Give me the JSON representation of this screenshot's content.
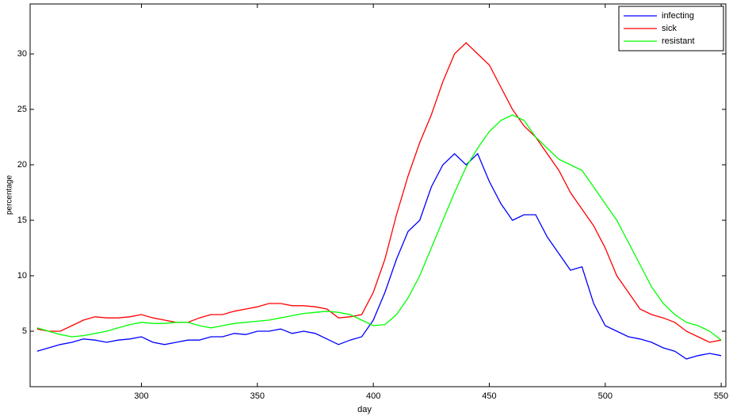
{
  "chart_data": {
    "type": "line",
    "x_label": "day",
    "y_label": "percentage",
    "x": [
      255,
      260,
      265,
      270,
      275,
      280,
      285,
      290,
      295,
      300,
      305,
      310,
      315,
      320,
      325,
      330,
      335,
      340,
      345,
      350,
      355,
      360,
      365,
      370,
      375,
      380,
      385,
      390,
      395,
      400,
      405,
      410,
      415,
      420,
      425,
      430,
      435,
      440,
      445,
      450,
      455,
      460,
      465,
      470,
      475,
      480,
      485,
      490,
      495,
      500,
      505,
      510,
      515,
      520,
      525,
      530,
      535,
      540,
      545,
      550
    ],
    "series": [
      {
        "name": "infecting",
        "color": "#0000ff",
        "values": [
          3.2,
          3.5,
          3.8,
          4.0,
          4.3,
          4.2,
          4.0,
          4.2,
          4.3,
          4.5,
          4.0,
          3.8,
          4.0,
          4.2,
          4.2,
          4.5,
          4.5,
          4.8,
          4.7,
          5.0,
          5.0,
          5.2,
          4.8,
          5.0,
          4.8,
          4.3,
          3.8,
          4.2,
          4.5,
          6.0,
          8.5,
          11.5,
          14,
          15,
          18,
          20,
          21,
          20,
          21,
          18.5,
          16.5,
          15,
          15.5,
          15.5,
          13.5,
          12,
          10.5,
          10.8,
          7.5,
          5.5,
          5,
          4.5,
          4.3,
          4.0,
          3.5,
          3.2,
          2.5,
          2.8,
          3.0,
          2.8
        ]
      },
      {
        "name": "sick",
        "color": "#ff0000",
        "values": [
          5.2,
          5.0,
          5.0,
          5.5,
          6.0,
          6.3,
          6.2,
          6.2,
          6.3,
          6.5,
          6.2,
          6.0,
          5.8,
          5.8,
          6.2,
          6.5,
          6.5,
          6.8,
          7.0,
          7.2,
          7.5,
          7.5,
          7.3,
          7.3,
          7.2,
          7.0,
          6.2,
          6.3,
          6.5,
          8.5,
          11.5,
          15.5,
          19,
          22,
          24.5,
          27.5,
          30,
          31,
          30,
          29,
          27,
          25,
          23.5,
          22.5,
          21,
          19.5,
          17.5,
          16,
          14.5,
          12.5,
          10,
          8.5,
          7,
          6.5,
          6.2,
          5.8,
          5.0,
          4.5,
          4.0,
          4.2
        ]
      },
      {
        "name": "resistant",
        "color": "#00ff00",
        "values": [
          5.3,
          5.0,
          4.7,
          4.5,
          4.6,
          4.8,
          5.0,
          5.3,
          5.6,
          5.8,
          5.7,
          5.7,
          5.8,
          5.8,
          5.5,
          5.3,
          5.5,
          5.7,
          5.8,
          5.9,
          6.0,
          6.2,
          6.4,
          6.6,
          6.7,
          6.8,
          6.7,
          6.5,
          6.0,
          5.5,
          5.6,
          6.5,
          8.0,
          10,
          12.5,
          15,
          17.5,
          19.8,
          21.5,
          23,
          24,
          24.5,
          24,
          22.5,
          21.5,
          20.5,
          20,
          19.5,
          18,
          16.5,
          15,
          13,
          11,
          9,
          7.5,
          6.5,
          5.8,
          5.5,
          5.0,
          4.2
        ]
      }
    ],
    "xlim": [
      252,
      552
    ],
    "xticks": [
      300,
      350,
      400,
      450,
      500,
      550
    ],
    "ylim": [
      0,
      34.5
    ],
    "yticks": [
      5,
      10,
      15,
      20,
      25,
      30
    ],
    "grid": false,
    "legend": "top-right"
  }
}
